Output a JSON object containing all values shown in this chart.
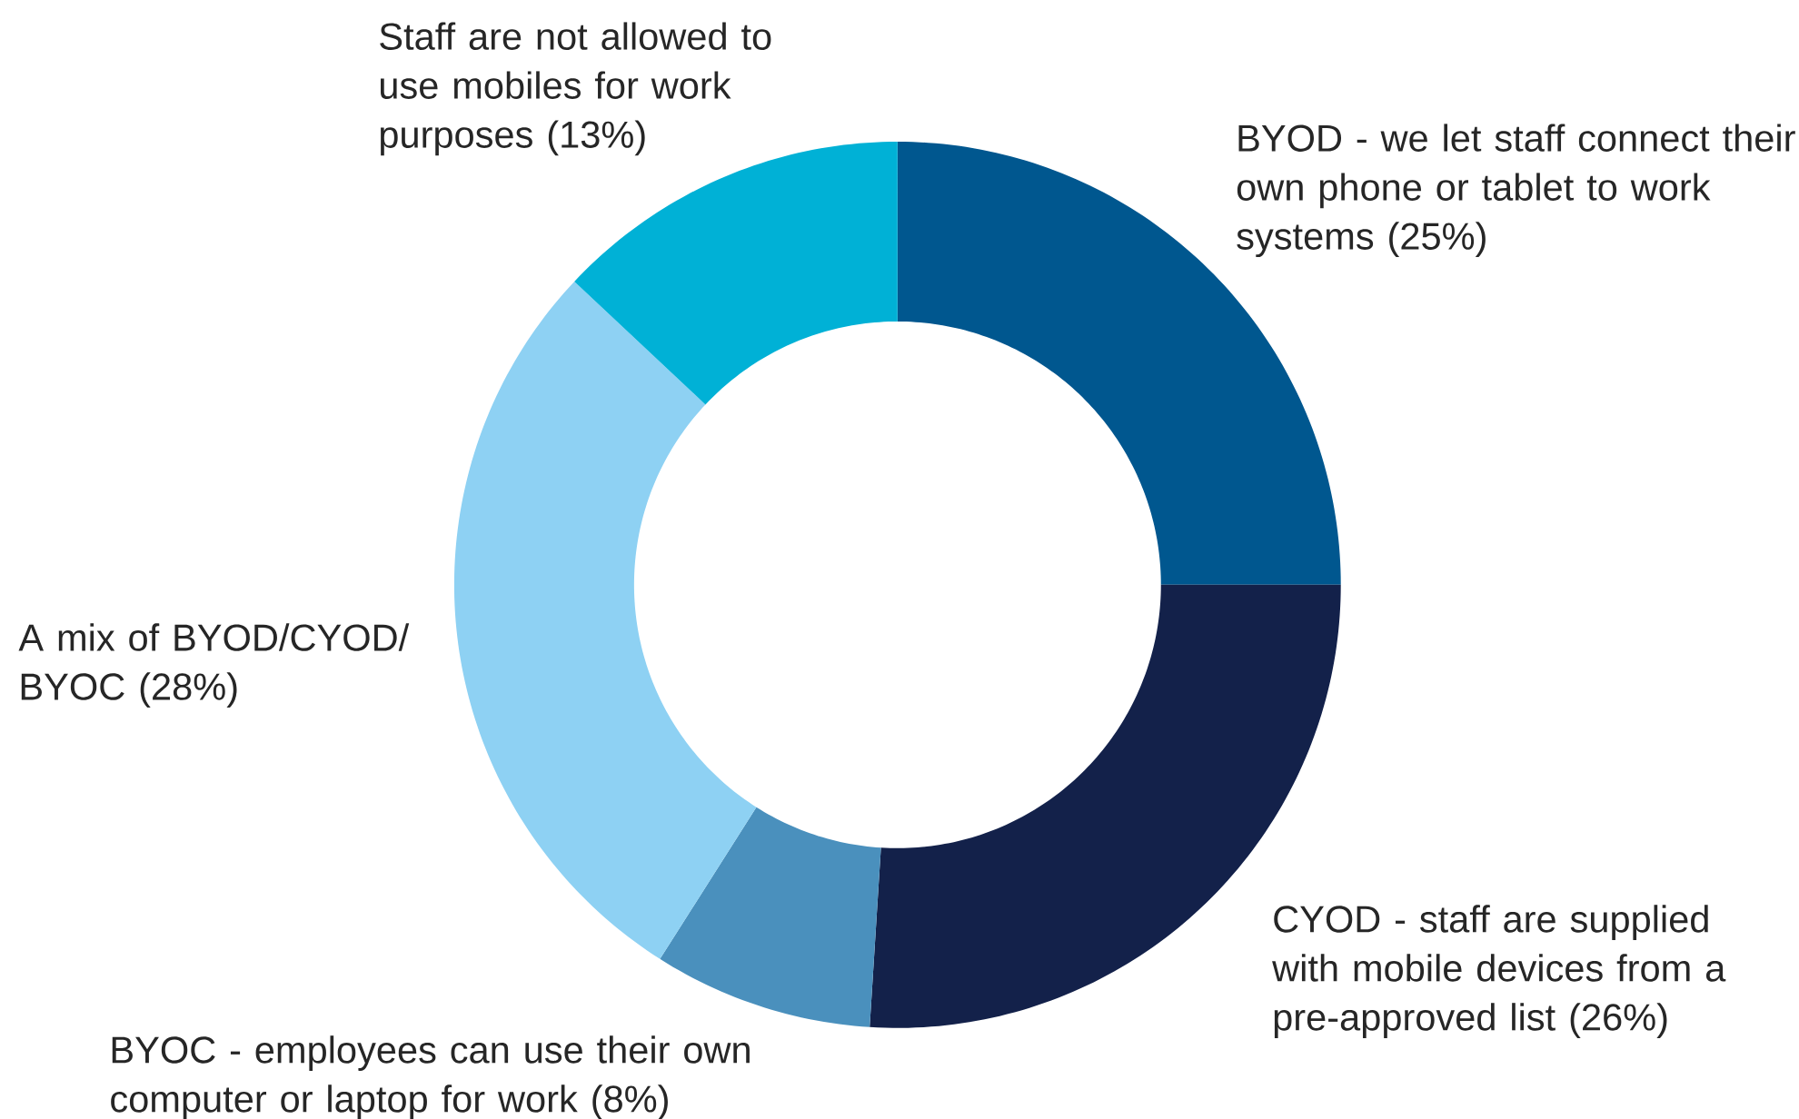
{
  "chart_data": {
    "type": "donut",
    "categories": [
      "BYOD - we let staff connect their own phone or tablet to work systems",
      "CYOD - staff are supplied with mobile devices from a pre-approved list",
      "BYOC - employees can use their own computer or laptop for work",
      "A mix of BYOD/CYOD/BYOC",
      "Staff are not allowed to use mobiles for work purposes"
    ],
    "values": [
      25,
      26,
      8,
      28,
      13
    ],
    "value_labels": [
      "(25%)",
      "(26%)",
      "(8%)",
      "(28%)",
      "(13%)"
    ],
    "colors": [
      "#00578f",
      "#13214a",
      "#4a90bd",
      "#8ed1f3",
      "#00b1d6"
    ]
  }
}
